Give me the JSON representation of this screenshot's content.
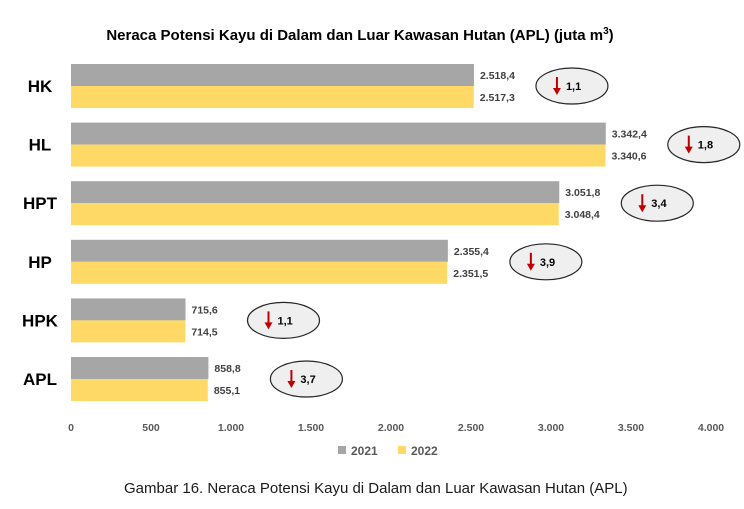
{
  "chart_data": {
    "type": "bar",
    "orientation": "horizontal",
    "title": "Neraca Potensi Kayu di Dalam dan Luar Kawasan Hutan (APL) (juta m",
    "title_superscript": "3",
    "title_suffix": ")",
    "categories": [
      "HK",
      "HL",
      "HPT",
      "HP",
      "HPK",
      "APL"
    ],
    "series": [
      {
        "name": "2021",
        "color": "#A6A6A6",
        "values": [
          2518.4,
          3342.4,
          3051.8,
          2355.4,
          715.6,
          858.8
        ],
        "labels": [
          "2.518,4",
          "3.342,4",
          "3.051,8",
          "2.355,4",
          "715,6",
          "858,8"
        ]
      },
      {
        "name": "2022",
        "color": "#FFD966",
        "values": [
          2517.3,
          3340.6,
          3048.4,
          2351.5,
          714.5,
          855.1
        ],
        "labels": [
          "2.517,3",
          "3.340,6",
          "3.048,4",
          "2.351,5",
          "714,5",
          "855,1"
        ]
      }
    ],
    "decrease_labels": [
      "1,1",
      "1,8",
      "3,4",
      "3,9",
      "1,1",
      "3,7"
    ],
    "decrease_arrow_color": "#C00000",
    "xlim": [
      0,
      4000
    ],
    "xticks": [
      0,
      500,
      1000,
      1500,
      2000,
      2500,
      3000,
      3500,
      4000
    ],
    "xtick_labels": [
      "0",
      "500",
      "1.000",
      "1.500",
      "2.000",
      "2.500",
      "3.000",
      "3.500",
      "4.000"
    ],
    "grid": false,
    "legend_position": "bottom"
  },
  "caption": "Gambar 16. Neraca Potensi Kayu di Dalam dan Luar Kawasan Hutan (APL)"
}
